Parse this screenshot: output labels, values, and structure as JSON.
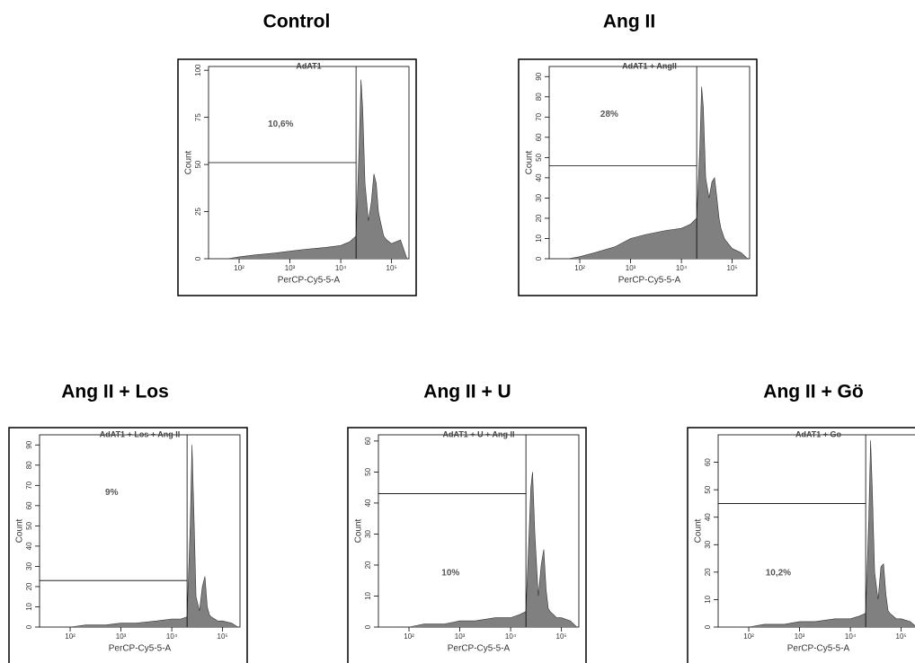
{
  "chart_data": [
    {
      "type": "area",
      "title": "Control",
      "subtitle": "AdAT1",
      "x_label": "PerCP-Cy5-5-A",
      "y_label": "Count",
      "annotation": "10,6%",
      "color": "#808080",
      "xscale": "log",
      "x": [
        60,
        100,
        200,
        500,
        1000,
        2000,
        5000,
        10000,
        15000,
        20000,
        23000,
        25000,
        27000,
        30000,
        35000,
        40000,
        45000,
        50000,
        55000,
        60000,
        70000,
        80000,
        100000,
        150000,
        200000
      ],
      "values": [
        0,
        1,
        2,
        3,
        4,
        5,
        6,
        7,
        9,
        12,
        60,
        95,
        80,
        40,
        20,
        30,
        45,
        40,
        25,
        20,
        12,
        10,
        8,
        10,
        0
      ],
      "xlim": [
        25,
        220000
      ],
      "ylim": [
        0,
        102
      ],
      "yticks": [
        0,
        25,
        50,
        75,
        100
      ],
      "xticks": [
        {
          "value": 100,
          "label": "10²"
        },
        {
          "value": 1000,
          "label": "10³"
        },
        {
          "value": 10000,
          "label": "10⁴"
        },
        {
          "value": 100000,
          "label": "10⁵"
        }
      ],
      "gate_x": 20000,
      "gate_y": 51
    },
    {
      "type": "area",
      "title": "Ang II",
      "subtitle": "AdAT1 + AngII",
      "x_label": "PerCP-Cy5-5-A",
      "y_label": "Count",
      "annotation": "28%",
      "color": "#808080",
      "xscale": "log",
      "x": [
        60,
        100,
        200,
        500,
        1000,
        2000,
        5000,
        10000,
        15000,
        20000,
        23000,
        25000,
        27000,
        30000,
        35000,
        40000,
        45000,
        50000,
        55000,
        60000,
        70000,
        80000,
        100000,
        150000,
        200000
      ],
      "values": [
        0,
        1,
        3,
        6,
        10,
        12,
        14,
        15,
        17,
        20,
        55,
        85,
        75,
        40,
        30,
        38,
        40,
        30,
        20,
        15,
        10,
        8,
        5,
        3,
        0
      ],
      "xlim": [
        25,
        220000
      ],
      "ylim": [
        0,
        95
      ],
      "yticks": [
        0,
        10,
        20,
        30,
        40,
        50,
        60,
        70,
        80,
        90
      ],
      "xticks": [
        {
          "value": 100,
          "label": "10²"
        },
        {
          "value": 1000,
          "label": "10³"
        },
        {
          "value": 10000,
          "label": "10⁴"
        },
        {
          "value": 100000,
          "label": "10⁵"
        }
      ],
      "gate_x": 20000,
      "gate_y": 46
    },
    {
      "type": "area",
      "title": "Ang II + Los",
      "subtitle": "AdAT1 + Los + Ang II",
      "x_label": "PerCP-Cy5-5-A",
      "y_label": "Count",
      "annotation": "9%",
      "color": "#808080",
      "xscale": "log",
      "x": [
        60,
        100,
        200,
        500,
        1000,
        2000,
        5000,
        10000,
        15000,
        20000,
        23000,
        25000,
        27000,
        30000,
        35000,
        40000,
        45000,
        50000,
        55000,
        60000,
        70000,
        80000,
        100000,
        150000,
        200000
      ],
      "values": [
        0,
        0,
        1,
        1,
        2,
        2,
        3,
        4,
        4,
        5,
        50,
        90,
        60,
        15,
        8,
        20,
        25,
        10,
        6,
        5,
        4,
        3,
        3,
        2,
        0
      ],
      "xlim": [
        25,
        220000
      ],
      "ylim": [
        0,
        95
      ],
      "yticks": [
        0,
        10,
        20,
        30,
        40,
        50,
        60,
        70,
        80,
        90
      ],
      "xticks": [
        {
          "value": 100,
          "label": "10²"
        },
        {
          "value": 1000,
          "label": "10³"
        },
        {
          "value": 10000,
          "label": "10⁴"
        },
        {
          "value": 100000,
          "label": "10⁵"
        }
      ],
      "gate_x": 20000,
      "gate_y": 23
    },
    {
      "type": "area",
      "title": "Ang II + U",
      "subtitle": "AdAT1 + U + Ang II",
      "x_label": "PerCP-Cy5-5-A",
      "y_label": "Count",
      "annotation": "10%",
      "color": "#808080",
      "xscale": "log",
      "x": [
        60,
        100,
        200,
        500,
        1000,
        2000,
        5000,
        10000,
        15000,
        20000,
        23000,
        25000,
        27000,
        30000,
        35000,
        40000,
        45000,
        50000,
        55000,
        60000,
        70000,
        80000,
        100000,
        150000,
        200000
      ],
      "values": [
        0,
        0,
        1,
        1,
        2,
        2,
        3,
        3,
        4,
        5,
        30,
        45,
        50,
        30,
        10,
        20,
        25,
        12,
        6,
        5,
        4,
        3,
        3,
        2,
        0
      ],
      "xlim": [
        25,
        220000
      ],
      "ylim": [
        0,
        62
      ],
      "yticks": [
        0,
        10,
        20,
        30,
        40,
        50,
        60
      ],
      "xticks": [
        {
          "value": 100,
          "label": "10²"
        },
        {
          "value": 1000,
          "label": "10³"
        },
        {
          "value": 10000,
          "label": "10⁴"
        },
        {
          "value": 100000,
          "label": "10⁵"
        }
      ],
      "gate_x": 20000,
      "gate_y": 43
    },
    {
      "type": "area",
      "title": "Ang II + Gö",
      "subtitle": "AdAT1 + Go",
      "x_label": "PerCP-Cy5-5-A",
      "y_label": "Count",
      "annotation": "10,2%",
      "color": "#808080",
      "xscale": "log",
      "x": [
        60,
        100,
        200,
        500,
        1000,
        2000,
        5000,
        10000,
        15000,
        20000,
        23000,
        25000,
        27000,
        30000,
        35000,
        40000,
        45000,
        50000,
        55000,
        60000,
        70000,
        80000,
        100000,
        150000,
        200000
      ],
      "values": [
        0,
        0,
        1,
        1,
        2,
        2,
        3,
        3,
        4,
        5,
        40,
        68,
        50,
        20,
        10,
        22,
        23,
        12,
        6,
        5,
        4,
        3,
        3,
        2,
        0
      ],
      "xlim": [
        25,
        220000
      ],
      "ylim": [
        0,
        70
      ],
      "yticks": [
        0,
        10,
        20,
        30,
        40,
        50,
        60
      ],
      "xticks": [
        {
          "value": 100,
          "label": "10²"
        },
        {
          "value": 1000,
          "label": "10³"
        },
        {
          "value": 10000,
          "label": "10⁴"
        },
        {
          "value": 100000,
          "label": "10⁵"
        }
      ],
      "gate_x": 20000,
      "gate_y": 45
    }
  ]
}
